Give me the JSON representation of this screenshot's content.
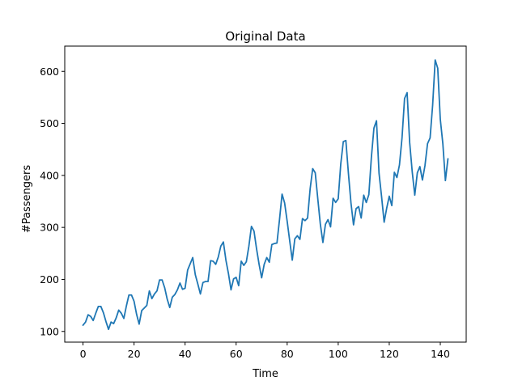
{
  "chart_data": {
    "type": "line",
    "title": "Original Data",
    "xlabel": "Time",
    "ylabel": "#Passengers",
    "xlim": [
      -7.15,
      150.15
    ],
    "ylim": [
      79.4,
      648.6
    ],
    "xticks": [
      0,
      20,
      40,
      60,
      80,
      100,
      120,
      140
    ],
    "yticks": [
      100,
      200,
      300,
      400,
      500,
      600
    ],
    "grid": false,
    "legend": "none",
    "series_color": "#1f77b4",
    "x": [
      0,
      1,
      2,
      3,
      4,
      5,
      6,
      7,
      8,
      9,
      10,
      11,
      12,
      13,
      14,
      15,
      16,
      17,
      18,
      19,
      20,
      21,
      22,
      23,
      24,
      25,
      26,
      27,
      28,
      29,
      30,
      31,
      32,
      33,
      34,
      35,
      36,
      37,
      38,
      39,
      40,
      41,
      42,
      43,
      44,
      45,
      46,
      47,
      48,
      49,
      50,
      51,
      52,
      53,
      54,
      55,
      56,
      57,
      58,
      59,
      60,
      61,
      62,
      63,
      64,
      65,
      66,
      67,
      68,
      69,
      70,
      71,
      72,
      73,
      74,
      75,
      76,
      77,
      78,
      79,
      80,
      81,
      82,
      83,
      84,
      85,
      86,
      87,
      88,
      89,
      90,
      91,
      92,
      93,
      94,
      95,
      96,
      97,
      98,
      99,
      100,
      101,
      102,
      103,
      104,
      105,
      106,
      107,
      108,
      109,
      110,
      111,
      112,
      113,
      114,
      115,
      116,
      117,
      118,
      119,
      120,
      121,
      122,
      123,
      124,
      125,
      126,
      127,
      128,
      129,
      130,
      131,
      132,
      133,
      134,
      135,
      136,
      137,
      138,
      139,
      140,
      141,
      142,
      143
    ],
    "values": [
      112,
      118,
      132,
      129,
      121,
      135,
      148,
      148,
      136,
      119,
      104,
      118,
      115,
      126,
      141,
      135,
      125,
      149,
      170,
      170,
      158,
      133,
      114,
      140,
      145,
      150,
      178,
      163,
      172,
      178,
      199,
      199,
      184,
      162,
      146,
      166,
      171,
      180,
      193,
      181,
      183,
      218,
      230,
      242,
      209,
      191,
      172,
      194,
      196,
      196,
      236,
      235,
      229,
      243,
      264,
      272,
      237,
      211,
      180,
      201,
      204,
      188,
      235,
      227,
      234,
      264,
      302,
      293,
      259,
      229,
      203,
      229,
      242,
      233,
      267,
      269,
      270,
      315,
      364,
      347,
      312,
      274,
      237,
      278,
      284,
      277,
      317,
      313,
      318,
      374,
      413,
      405,
      355,
      306,
      271,
      306,
      315,
      301,
      356,
      348,
      355,
      422,
      465,
      467,
      404,
      347,
      305,
      336,
      340,
      318,
      362,
      348,
      363,
      435,
      491,
      505,
      404,
      359,
      310,
      337,
      360,
      342,
      406,
      396,
      420,
      472,
      548,
      559,
      463,
      407,
      362,
      405,
      417,
      391,
      419,
      461,
      472,
      535,
      622,
      606,
      508,
      461,
      390,
      432
    ]
  }
}
